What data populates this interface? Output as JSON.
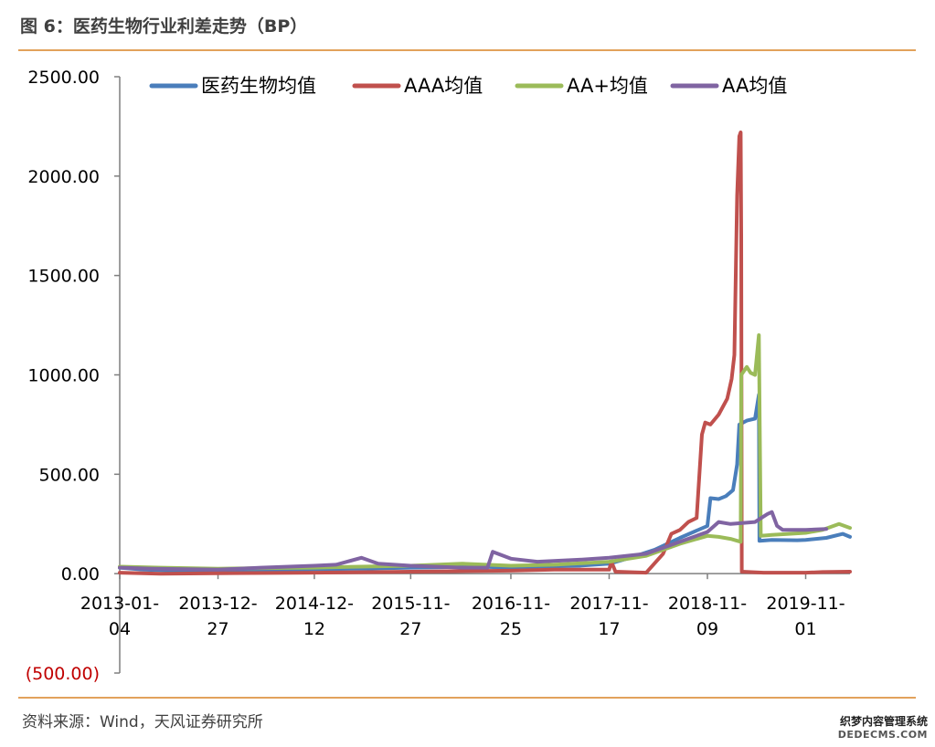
{
  "header": {
    "title": "图 6：医药生物行业利差走势（BP）"
  },
  "footer": {
    "source": "资料来源：Wind，天风证券研究所",
    "watermark_line1": "织梦内容管理系统",
    "watermark_line2": "DEDECMS.COM"
  },
  "chart_data": {
    "type": "line",
    "title": "",
    "xlabel": "",
    "ylabel": "",
    "ylim": [
      -500,
      2500
    ],
    "y_ticks": [
      {
        "value": -500,
        "label": "(500.00)",
        "color": "#c00000"
      },
      {
        "value": 0,
        "label": "0.00"
      },
      {
        "value": 500,
        "label": "500.00"
      },
      {
        "value": 1000,
        "label": "1000.00"
      },
      {
        "value": 1500,
        "label": "1500.00"
      },
      {
        "value": 2000,
        "label": "2000.00"
      },
      {
        "value": 2500,
        "label": "2500.00"
      }
    ],
    "x_ticks": [
      {
        "line1": "2013-01-",
        "line2": "04",
        "date": "2013-01-04"
      },
      {
        "line1": "2013-12-",
        "line2": "27",
        "date": "2013-12-27"
      },
      {
        "line1": "2014-12-",
        "line2": "12",
        "date": "2014-12-12"
      },
      {
        "line1": "2015-11-",
        "line2": "27",
        "date": "2015-11-27"
      },
      {
        "line1": "2016-11-",
        "line2": "25",
        "date": "2016-11-25"
      },
      {
        "line1": "2017-11-",
        "line2": "17",
        "date": "2017-11-17"
      },
      {
        "line1": "2018-11-",
        "line2": "09",
        "date": "2018-11-09"
      },
      {
        "line1": "2019-11-",
        "line2": "01",
        "date": "2019-11-01"
      }
    ],
    "grid": false,
    "legend_position": "top",
    "series": [
      {
        "name": "医药生物均值",
        "color": "#4a7ebb",
        "points": [
          [
            "2013-01-04",
            30
          ],
          [
            "2013-04-01",
            20
          ],
          [
            "2013-08-01",
            15
          ],
          [
            "2014-01-01",
            12
          ],
          [
            "2014-06-01",
            18
          ],
          [
            "2014-12-12",
            22
          ],
          [
            "2015-06-01",
            25
          ],
          [
            "2015-11-27",
            30
          ],
          [
            "2016-03-01",
            32
          ],
          [
            "2016-08-01",
            35
          ],
          [
            "2016-11-25",
            30
          ],
          [
            "2017-03-01",
            35
          ],
          [
            "2017-08-01",
            40
          ],
          [
            "2017-11-17",
            50
          ],
          [
            "2018-02-01",
            80
          ],
          [
            "2018-05-01",
            120
          ],
          [
            "2018-08-01",
            180
          ],
          [
            "2018-11-09",
            240
          ],
          [
            "2018-11-20",
            380
          ],
          [
            "2018-12-20",
            375
          ],
          [
            "2019-01-15",
            390
          ],
          [
            "2019-02-10",
            420
          ],
          [
            "2019-02-25",
            550
          ],
          [
            "2019-03-05",
            750
          ],
          [
            "2019-04-01",
            770
          ],
          [
            "2019-05-01",
            780
          ],
          [
            "2019-05-15",
            900
          ],
          [
            "2019-05-17",
            165
          ],
          [
            "2019-07-01",
            170
          ],
          [
            "2019-10-01",
            168
          ],
          [
            "2019-11-01",
            170
          ],
          [
            "2020-01-15",
            180
          ],
          [
            "2020-03-15",
            200
          ],
          [
            "2020-04-10",
            185
          ]
        ]
      },
      {
        "name": "AAA均值",
        "color": "#c0504d",
        "points": [
          [
            "2013-01-04",
            5
          ],
          [
            "2013-06-01",
            0
          ],
          [
            "2013-12-27",
            2
          ],
          [
            "2014-12-12",
            5
          ],
          [
            "2015-11-27",
            10
          ],
          [
            "2016-11-25",
            15
          ],
          [
            "2017-05-01",
            20
          ],
          [
            "2017-11-17",
            20
          ],
          [
            "2017-11-25",
            60
          ],
          [
            "2017-12-10",
            10
          ],
          [
            "2018-04-01",
            5
          ],
          [
            "2018-06-01",
            100
          ],
          [
            "2018-07-01",
            200
          ],
          [
            "2018-08-01",
            220
          ],
          [
            "2018-09-01",
            260
          ],
          [
            "2018-10-01",
            280
          ],
          [
            "2018-10-20",
            700
          ],
          [
            "2018-11-01",
            760
          ],
          [
            "2018-11-20",
            750
          ],
          [
            "2018-12-20",
            800
          ],
          [
            "2019-01-20",
            880
          ],
          [
            "2019-02-05",
            980
          ],
          [
            "2019-02-15",
            1100
          ],
          [
            "2019-02-25",
            1900
          ],
          [
            "2019-03-05",
            2200
          ],
          [
            "2019-03-10",
            2220
          ],
          [
            "2019-03-12",
            1700
          ],
          [
            "2019-03-14",
            10
          ],
          [
            "2019-06-01",
            5
          ],
          [
            "2019-11-01",
            5
          ],
          [
            "2020-01-01",
            8
          ],
          [
            "2020-04-10",
            10
          ]
        ]
      },
      {
        "name": "AA+均值",
        "color": "#9bbb59",
        "points": [
          [
            "2013-01-04",
            35
          ],
          [
            "2013-06-01",
            30
          ],
          [
            "2013-12-27",
            25
          ],
          [
            "2014-06-01",
            28
          ],
          [
            "2014-12-12",
            30
          ],
          [
            "2015-06-01",
            35
          ],
          [
            "2015-11-27",
            40
          ],
          [
            "2016-06-01",
            50
          ],
          [
            "2016-11-25",
            40
          ],
          [
            "2017-05-01",
            45
          ],
          [
            "2017-11-17",
            60
          ],
          [
            "2018-04-01",
            90
          ],
          [
            "2018-08-01",
            150
          ],
          [
            "2018-11-09",
            190
          ],
          [
            "2018-12-20",
            185
          ],
          [
            "2019-02-01",
            175
          ],
          [
            "2019-03-10",
            160
          ],
          [
            "2019-03-12",
            1000
          ],
          [
            "2019-04-01",
            1040
          ],
          [
            "2019-04-15",
            1010
          ],
          [
            "2019-05-01",
            1000
          ],
          [
            "2019-05-15",
            1200
          ],
          [
            "2019-05-22",
            190
          ],
          [
            "2019-07-01",
            195
          ],
          [
            "2019-11-01",
            205
          ],
          [
            "2020-01-01",
            220
          ],
          [
            "2020-03-01",
            250
          ],
          [
            "2020-04-10",
            230
          ]
        ]
      },
      {
        "name": "AA均值",
        "color": "#8064a2",
        "points": [
          [
            "2013-01-04",
            30
          ],
          [
            "2013-05-01",
            25
          ],
          [
            "2013-12-27",
            20
          ],
          [
            "2014-06-01",
            30
          ],
          [
            "2014-12-12",
            40
          ],
          [
            "2015-03-01",
            45
          ],
          [
            "2015-06-01",
            80
          ],
          [
            "2015-08-01",
            50
          ],
          [
            "2015-11-27",
            40
          ],
          [
            "2016-06-01",
            30
          ],
          [
            "2016-09-01",
            30
          ],
          [
            "2016-09-20",
            110
          ],
          [
            "2016-11-25",
            75
          ],
          [
            "2017-03-01",
            60
          ],
          [
            "2017-08-01",
            70
          ],
          [
            "2017-11-17",
            80
          ],
          [
            "2018-04-01",
            100
          ],
          [
            "2018-08-01",
            160
          ],
          [
            "2018-11-09",
            210
          ],
          [
            "2018-12-20",
            260
          ],
          [
            "2019-02-01",
            250
          ],
          [
            "2019-05-01",
            260
          ],
          [
            "2019-06-15",
            300
          ],
          [
            "2019-07-01",
            310
          ],
          [
            "2019-07-20",
            240
          ],
          [
            "2019-08-10",
            220
          ],
          [
            "2019-11-01",
            220
          ],
          [
            "2020-01-15",
            225
          ]
        ]
      }
    ]
  }
}
